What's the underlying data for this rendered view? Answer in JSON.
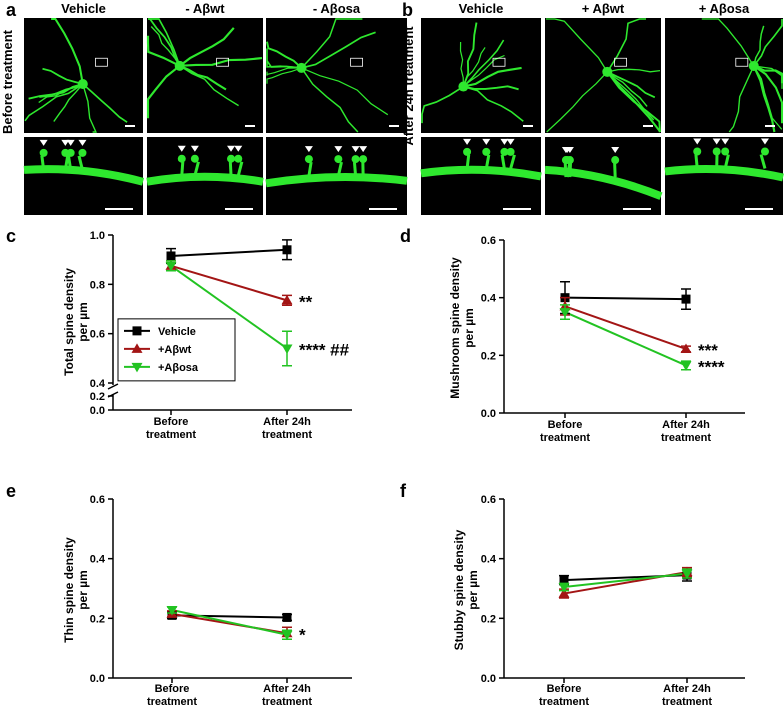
{
  "panels": {
    "a": {
      "label": "a",
      "row_label": "Before treatment",
      "columns": [
        "Vehicle",
        "- Aβwt",
        "- Aβosa"
      ]
    },
    "b": {
      "label": "b",
      "row_label": "After 24h treatment",
      "columns": [
        "Vehicle",
        "+ Aβwt",
        "+ Aβosa"
      ]
    }
  },
  "chart_data": [
    {
      "type": "line",
      "label": "c",
      "y_label": "Total spine density per µm",
      "categories": [
        "Before treatment",
        "After 24h treatment"
      ],
      "ylim": [
        0,
        1.0
      ],
      "ybreak": [
        0.2,
        0.4
      ],
      "yticks": [
        {
          "value": 0,
          "label": "0.0"
        },
        0.2,
        0.4,
        0.6,
        0.8,
        {
          "value": 1.0,
          "label": "1.0"
        }
      ],
      "legend": "left",
      "series": [
        {
          "name": "Vehicle",
          "color": "#000000",
          "marker": "square",
          "values": [
            0.915,
            0.94
          ],
          "errors": [
            0.03,
            0.04
          ]
        },
        {
          "name": "+Aβwt",
          "color": "#a31515",
          "marker": "triangle-up",
          "values": [
            0.875,
            0.735
          ],
          "errors": [
            0.02,
            0.02
          ],
          "annotation": "**"
        },
        {
          "name": "+Aβosa",
          "color": "#22c322",
          "marker": "triangle-down",
          "values": [
            0.875,
            0.54
          ],
          "errors": [
            0.02,
            0.07
          ],
          "annotation": "**** ##"
        }
      ]
    },
    {
      "type": "line",
      "label": "d",
      "y_label": "Mushroom spine density per µm",
      "categories": [
        "Before treatment",
        "After 24h treatment"
      ],
      "ylim": [
        0,
        0.6
      ],
      "yticks": [
        {
          "value": 0,
          "label": "0.0"
        },
        0.2,
        0.4,
        0.6
      ],
      "series": [
        {
          "name": "Vehicle",
          "color": "#000000",
          "marker": "square",
          "values": [
            0.4,
            0.395
          ],
          "errors": [
            0.055,
            0.035
          ]
        },
        {
          "name": "+Aβwt",
          "color": "#a31515",
          "marker": "triangle-up",
          "values": [
            0.37,
            0.222
          ],
          "errors": [
            0.03,
            0.01
          ],
          "annotation": "***"
        },
        {
          "name": "+Aβosa",
          "color": "#22c322",
          "marker": "triangle-down",
          "values": [
            0.35,
            0.165
          ],
          "errors": [
            0.025,
            0.015
          ],
          "annotation": "****"
        }
      ]
    },
    {
      "type": "line",
      "label": "e",
      "y_label": "Thin spine density per µm",
      "categories": [
        "Before treatment",
        "After 24h treatment"
      ],
      "ylim": [
        0,
        0.6
      ],
      "yticks": [
        {
          "value": 0,
          "label": "0.0"
        },
        0.2,
        0.4,
        0.6
      ],
      "series": [
        {
          "name": "Vehicle",
          "color": "#000000",
          "marker": "square",
          "values": [
            0.21,
            0.203
          ],
          "errors": [
            0.01,
            0.01
          ]
        },
        {
          "name": "+Aβwt",
          "color": "#a31515",
          "marker": "triangle-up",
          "values": [
            0.215,
            0.15
          ],
          "errors": [
            0.01,
            0.02
          ],
          "annotation": "*"
        },
        {
          "name": "+Aβosa",
          "color": "#22c322",
          "marker": "triangle-down",
          "values": [
            0.228,
            0.145
          ],
          "errors": [
            0.01,
            0.015
          ]
        }
      ]
    },
    {
      "type": "line",
      "label": "f",
      "y_label": "Stubby spine density per µm",
      "categories": [
        "Before treatment",
        "After 24h treatment"
      ],
      "ylim": [
        0,
        0.6
      ],
      "yticks": [
        {
          "value": 0,
          "label": "0.0"
        },
        0.2,
        0.4,
        0.6
      ],
      "series": [
        {
          "name": "Vehicle",
          "color": "#000000",
          "marker": "square",
          "values": [
            0.328,
            0.345
          ],
          "errors": [
            0.015,
            0.02
          ]
        },
        {
          "name": "+Aβwt",
          "color": "#a31515",
          "marker": "triangle-up",
          "values": [
            0.283,
            0.355
          ],
          "errors": [
            0.015,
            0.015
          ]
        },
        {
          "name": "+Aβosa",
          "color": "#22c322",
          "marker": "triangle-down",
          "values": [
            0.305,
            0.35
          ],
          "errors": [
            0.012,
            0.015
          ]
        }
      ]
    }
  ]
}
